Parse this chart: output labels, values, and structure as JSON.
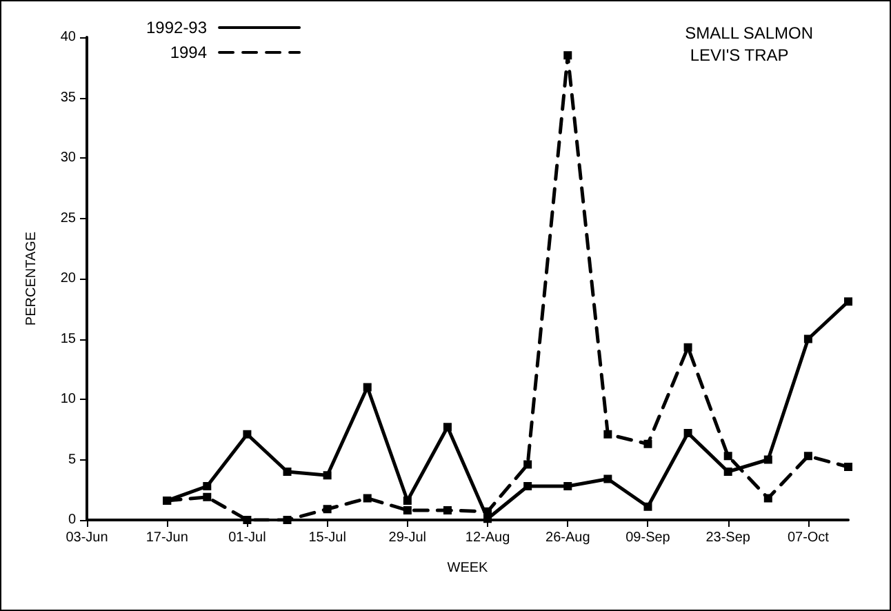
{
  "chart_data": {
    "type": "line",
    "title": "SMALL SALMON",
    "subtitle": "LEVI'S TRAP",
    "xlabel": "WEEK",
    "ylabel": "PERCENTAGE",
    "categories": [
      "03-Jun",
      null,
      "17-Jun",
      null,
      "01-Jul",
      null,
      "15-Jul",
      null,
      "29-Jul",
      null,
      "12-Aug",
      null,
      "26-Aug",
      null,
      "09-Sep",
      null,
      "23-Sep",
      null,
      "07-Oct",
      null
    ],
    "series": [
      {
        "name": "1992-93",
        "color": "#000000",
        "line_style": "solid",
        "values": [
          null,
          null,
          1.6,
          2.8,
          7.1,
          4.0,
          3.7,
          11.0,
          1.6,
          7.7,
          0.1,
          2.8,
          2.8,
          3.4,
          1.1,
          7.2,
          4.0,
          5.0,
          15.0,
          18.1
        ]
      },
      {
        "name": "1994",
        "color": "#000000",
        "line_style": "dashed",
        "values": [
          null,
          null,
          1.6,
          1.9,
          0.0,
          0.0,
          0.9,
          1.8,
          0.8,
          0.8,
          0.7,
          4.6,
          38.5,
          7.1,
          6.3,
          14.3,
          5.3,
          1.8,
          5.3,
          4.4
        ]
      }
    ],
    "ylim": [
      0,
      40
    ],
    "yticks": [
      0,
      5,
      10,
      15,
      20,
      25,
      30,
      35,
      40
    ],
    "grid": false,
    "legend": "top left",
    "marker": "square"
  }
}
